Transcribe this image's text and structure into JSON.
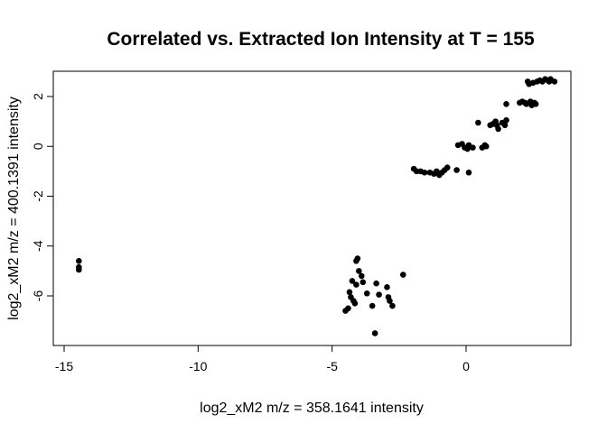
{
  "chart_data": {
    "type": "scatter",
    "title": "Correlated vs. Extracted Ion Intensity at T = 155",
    "xlabel": "log2_xM2 m/z = 358.1641 intensity",
    "ylabel": "log2_xM2 m/z = 400.1391 intensity",
    "xlim": [
      -15.0,
      4.0
    ],
    "ylim": [
      -8.0,
      3.0
    ],
    "x_ticks": [
      -15,
      -10,
      -5,
      0
    ],
    "x_tick_labels": [
      "-15",
      "-10",
      "-5",
      "0"
    ],
    "y_ticks": [
      -6,
      -4,
      -2,
      0,
      2
    ],
    "y_tick_labels": [
      "-6",
      "-4",
      "-2",
      "0",
      "2"
    ],
    "grid": false,
    "legend": "none",
    "point_color": "#000000",
    "points": [
      {
        "x": -14.45,
        "y": -4.6
      },
      {
        "x": -14.45,
        "y": -4.85
      },
      {
        "x": -14.45,
        "y": -4.95
      },
      {
        "x": -4.5,
        "y": -6.6
      },
      {
        "x": -4.4,
        "y": -6.5
      },
      {
        "x": -4.35,
        "y": -5.85
      },
      {
        "x": -4.3,
        "y": -6.05
      },
      {
        "x": -4.25,
        "y": -5.4
      },
      {
        "x": -4.2,
        "y": -6.2
      },
      {
        "x": -4.15,
        "y": -6.3
      },
      {
        "x": -4.1,
        "y": -5.55
      },
      {
        "x": -4.1,
        "y": -4.6
      },
      {
        "x": -4.05,
        "y": -4.5
      },
      {
        "x": -4.0,
        "y": -5.0
      },
      {
        "x": -3.9,
        "y": -5.2
      },
      {
        "x": -3.85,
        "y": -5.45
      },
      {
        "x": -3.7,
        "y": -5.9
      },
      {
        "x": -3.5,
        "y": -6.4
      },
      {
        "x": -3.4,
        "y": -7.5
      },
      {
        "x": -3.35,
        "y": -5.5
      },
      {
        "x": -3.25,
        "y": -5.95
      },
      {
        "x": -2.95,
        "y": -5.65
      },
      {
        "x": -2.9,
        "y": -6.05
      },
      {
        "x": -2.85,
        "y": -6.2
      },
      {
        "x": -2.75,
        "y": -6.4
      },
      {
        "x": -2.35,
        "y": -5.15
      },
      {
        "x": -1.95,
        "y": -0.9
      },
      {
        "x": -1.85,
        "y": -1.0
      },
      {
        "x": -1.7,
        "y": -1.0
      },
      {
        "x": -1.55,
        "y": -1.05
      },
      {
        "x": -1.35,
        "y": -1.05
      },
      {
        "x": -1.2,
        "y": -1.1
      },
      {
        "x": -1.1,
        "y": -1.0
      },
      {
        "x": -1.0,
        "y": -1.15
      },
      {
        "x": -0.9,
        "y": -1.05
      },
      {
        "x": -0.8,
        "y": -0.95
      },
      {
        "x": -0.7,
        "y": -0.85
      },
      {
        "x": -0.35,
        "y": -0.95
      },
      {
        "x": -0.3,
        "y": 0.05
      },
      {
        "x": -0.15,
        "y": 0.1
      },
      {
        "x": -0.05,
        "y": -0.05
      },
      {
        "x": 0.05,
        "y": -0.1
      },
      {
        "x": 0.1,
        "y": 0.05
      },
      {
        "x": 0.1,
        "y": -1.05
      },
      {
        "x": 0.25,
        "y": -0.05
      },
      {
        "x": 0.45,
        "y": 0.95
      },
      {
        "x": 0.6,
        "y": -0.05
      },
      {
        "x": 0.7,
        "y": 0.05
      },
      {
        "x": 0.75,
        "y": 0.0
      },
      {
        "x": 0.9,
        "y": 0.85
      },
      {
        "x": 1.0,
        "y": 0.9
      },
      {
        "x": 1.1,
        "y": 1.0
      },
      {
        "x": 1.15,
        "y": 0.85
      },
      {
        "x": 1.2,
        "y": 0.7
      },
      {
        "x": 1.35,
        "y": 0.95
      },
      {
        "x": 1.45,
        "y": 0.85
      },
      {
        "x": 1.5,
        "y": 1.05
      },
      {
        "x": 1.5,
        "y": 1.7
      },
      {
        "x": 2.0,
        "y": 1.75
      },
      {
        "x": 2.1,
        "y": 1.8
      },
      {
        "x": 2.2,
        "y": 1.75
      },
      {
        "x": 2.25,
        "y": 1.7
      },
      {
        "x": 2.3,
        "y": 2.6
      },
      {
        "x": 2.35,
        "y": 2.5
      },
      {
        "x": 2.4,
        "y": 1.8
      },
      {
        "x": 2.45,
        "y": 1.65
      },
      {
        "x": 2.5,
        "y": 2.55
      },
      {
        "x": 2.55,
        "y": 1.75
      },
      {
        "x": 2.6,
        "y": 1.7
      },
      {
        "x": 2.65,
        "y": 2.6
      },
      {
        "x": 2.75,
        "y": 2.65
      },
      {
        "x": 2.85,
        "y": 2.6
      },
      {
        "x": 2.95,
        "y": 2.7
      },
      {
        "x": 3.05,
        "y": 2.65
      },
      {
        "x": 3.1,
        "y": 2.6
      },
      {
        "x": 3.15,
        "y": 2.7
      },
      {
        "x": 3.3,
        "y": 2.6
      }
    ]
  }
}
